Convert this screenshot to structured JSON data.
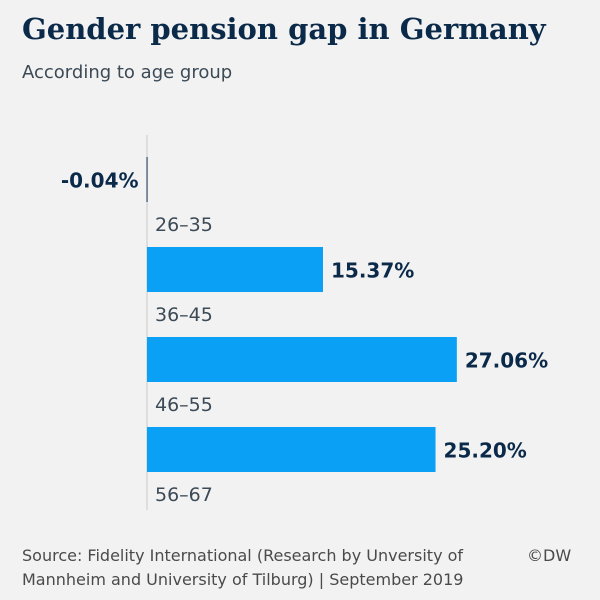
{
  "header": {
    "title": "Gender pension gap in Germany",
    "subtitle": "According to age group"
  },
  "footer": {
    "source_line1": "Source: Fidelity International (Research by Unversity of",
    "source_line2": "Mannheim and University of Tilburg) | September 2019",
    "credit": "©DW"
  },
  "colors": {
    "bar": "#0aa0f5",
    "value_label": "#0b2a4a",
    "axis": "#c9c9c9",
    "category_label": "#3c4a56"
  },
  "chart_data": {
    "type": "bar",
    "orientation": "horizontal",
    "categories": [
      "26–35",
      "36–45",
      "46–55",
      "56–67"
    ],
    "values": [
      -0.04,
      15.37,
      27.06,
      25.2
    ],
    "value_labels": [
      "-0.04%",
      "15.37%",
      "27.06%",
      "25.20%"
    ],
    "unit": "%",
    "title": "Gender pension gap in Germany",
    "subtitle": "According to age group",
    "xlabel": "",
    "ylabel": "",
    "xlim": [
      0,
      30
    ],
    "grid": false
  }
}
